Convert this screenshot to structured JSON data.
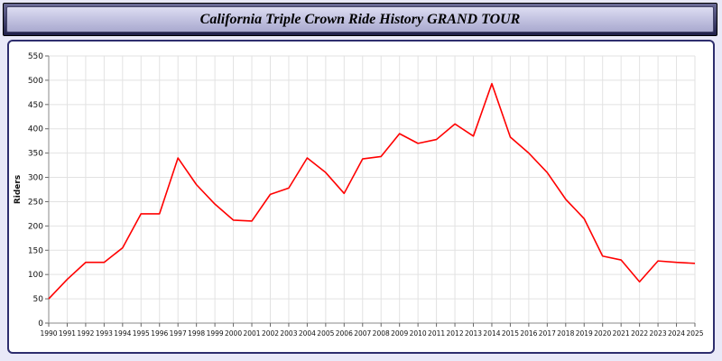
{
  "header": {
    "title": "California Triple Crown Ride History GRAND TOUR"
  },
  "chart_data": {
    "type": "line",
    "title": "California Triple Crown Ride History GRAND TOUR",
    "xlabel": "",
    "ylabel": "Riders",
    "ylim": [
      0,
      550
    ],
    "ytick_step": 50,
    "grid": true,
    "legend": "none",
    "line_color": "#ff0000",
    "x": [
      1990,
      1991,
      1992,
      1993,
      1994,
      1995,
      1996,
      1997,
      1998,
      1999,
      2000,
      2001,
      2002,
      2003,
      2004,
      2005,
      2006,
      2007,
      2008,
      2009,
      2010,
      2011,
      2012,
      2013,
      2014,
      2015,
      2016,
      2017,
      2018,
      2019,
      2020,
      2021,
      2022,
      2023,
      2024,
      2025
    ],
    "values": [
      50,
      90,
      125,
      125,
      155,
      225,
      225,
      340,
      285,
      245,
      212,
      210,
      265,
      278,
      340,
      310,
      267,
      338,
      343,
      390,
      370,
      378,
      410,
      385,
      493,
      383,
      350,
      310,
      255,
      215,
      138,
      130,
      85,
      128,
      125,
      123
    ]
  }
}
